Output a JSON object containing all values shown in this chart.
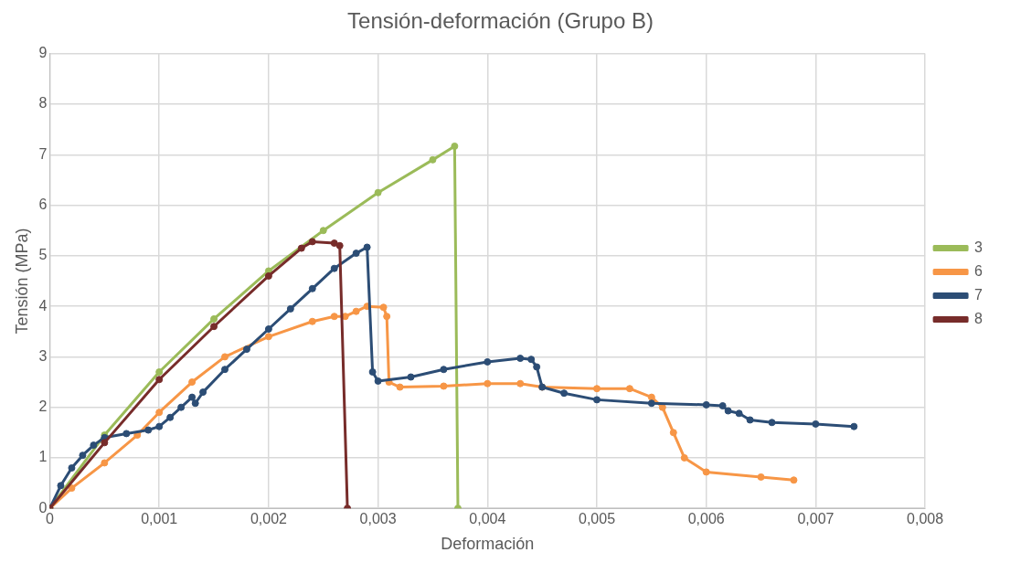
{
  "chart_data": {
    "type": "line",
    "title": "Tensión-deformación (Grupo B)",
    "xlabel": "Deformación",
    "ylabel": "Tensión (MPa)",
    "xlim": [
      0,
      0.008
    ],
    "xticks": [
      {
        "value": 0,
        "label": "0"
      },
      {
        "value": 0.001,
        "label": "0,001"
      },
      {
        "value": 0.002,
        "label": "0,002"
      },
      {
        "value": 0.003,
        "label": "0,003"
      },
      {
        "value": 0.004,
        "label": "0,004"
      },
      {
        "value": 0.005,
        "label": "0,005"
      },
      {
        "value": 0.006,
        "label": "0,006"
      },
      {
        "value": 0.007,
        "label": "0,007"
      },
      {
        "value": 0.008,
        "label": "0,008"
      }
    ],
    "ylim": [
      0,
      9
    ],
    "yticks": [
      0,
      1,
      2,
      3,
      4,
      5,
      6,
      7,
      8,
      9
    ],
    "grid": true,
    "legend": "right",
    "marker": "circle",
    "line_style": "solid",
    "series": [
      {
        "name": "3",
        "color": "#9bbb59",
        "x": [
          0,
          0.0005,
          0.001,
          0.0015,
          0.002,
          0.0025,
          0.003,
          0.0035,
          0.0037,
          0.00373
        ],
        "values": [
          0,
          1.45,
          2.7,
          3.75,
          4.7,
          5.5,
          6.25,
          6.9,
          7.17,
          0
        ]
      },
      {
        "name": "6",
        "color": "#f79646",
        "x": [
          0,
          0.0002,
          0.0005,
          0.0008,
          0.001,
          0.0013,
          0.0016,
          0.002,
          0.0024,
          0.0026,
          0.0027,
          0.0028,
          0.0029,
          0.00305,
          0.00308,
          0.0031,
          0.0032,
          0.0036,
          0.004,
          0.0043,
          0.0045,
          0.005,
          0.0053,
          0.0055,
          0.0056,
          0.0057,
          0.0058,
          0.006,
          0.0065,
          0.0068
        ],
        "values": [
          0,
          0.4,
          0.9,
          1.45,
          1.9,
          2.5,
          3.0,
          3.4,
          3.7,
          3.8,
          3.8,
          3.9,
          4.0,
          3.98,
          3.8,
          2.5,
          2.4,
          2.42,
          2.47,
          2.47,
          2.4,
          2.37,
          2.37,
          2.2,
          2.0,
          1.5,
          1.0,
          0.72,
          0.62,
          0.56
        ]
      },
      {
        "name": "7",
        "color": "#2c4d75",
        "x": [
          0,
          0.0001,
          0.0002,
          0.0003,
          0.0004,
          0.0005,
          0.0007,
          0.0009,
          0.001,
          0.0011,
          0.0012,
          0.0013,
          0.00133,
          0.0014,
          0.0016,
          0.0018,
          0.002,
          0.0022,
          0.0024,
          0.0026,
          0.0028,
          0.0029,
          0.00295,
          0.003,
          0.0033,
          0.0036,
          0.004,
          0.0043,
          0.0044,
          0.00445,
          0.0045,
          0.0047,
          0.005,
          0.0055,
          0.006,
          0.00615,
          0.0062,
          0.0063,
          0.0064,
          0.0066,
          0.007,
          0.00735
        ],
        "values": [
          0,
          0.45,
          0.8,
          1.05,
          1.25,
          1.4,
          1.48,
          1.55,
          1.62,
          1.8,
          2.0,
          2.2,
          2.08,
          2.3,
          2.75,
          3.15,
          3.55,
          3.95,
          4.35,
          4.75,
          5.05,
          5.17,
          2.7,
          2.52,
          2.6,
          2.75,
          2.9,
          2.97,
          2.95,
          2.8,
          2.4,
          2.28,
          2.15,
          2.08,
          2.05,
          2.03,
          1.93,
          1.88,
          1.75,
          1.7,
          1.67,
          1.62
        ]
      },
      {
        "name": "8",
        "color": "#772c2a",
        "x": [
          0,
          0.0005,
          0.001,
          0.0015,
          0.002,
          0.0023,
          0.0024,
          0.0026,
          0.00265,
          0.00272
        ],
        "values": [
          0,
          1.3,
          2.55,
          3.6,
          4.6,
          5.15,
          5.28,
          5.25,
          5.2,
          0
        ]
      }
    ]
  }
}
